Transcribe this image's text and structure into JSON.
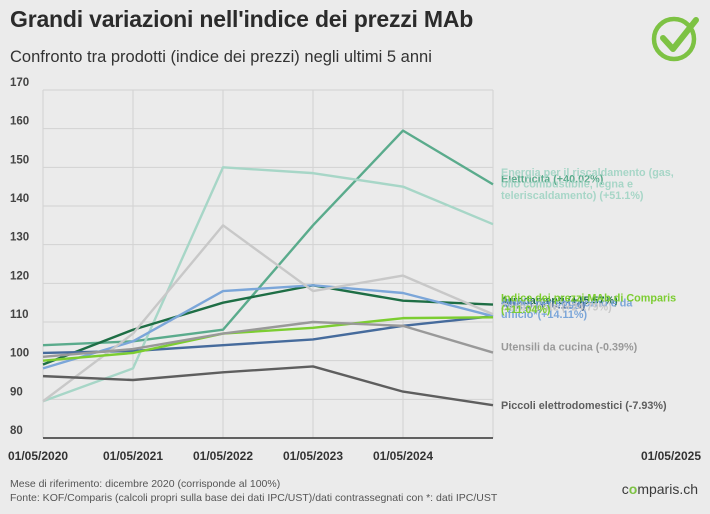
{
  "chart_data": {
    "type": "line",
    "title": "Grandi variazioni nell'indice dei prezzi MAb",
    "subtitle": "Confronto tra prodotti (indice dei prezzi) negli ultimi 5 anni",
    "x": [
      "01/05/2020",
      "01/05/2021",
      "01/05/2022",
      "01/05/2023",
      "01/05/2024",
      "01/05/2025"
    ],
    "ylim": [
      80,
      170
    ],
    "yticks": [
      80,
      90,
      100,
      110,
      120,
      130,
      140,
      150,
      160,
      170
    ],
    "grid": true,
    "series": [
      {
        "name": "Elettricità",
        "label": "Elettricità (+40.02%)",
        "color": "#5aab8c",
        "values": [
          104,
          105,
          108,
          135,
          159.5,
          145.6
        ]
      },
      {
        "name": "Energia per il riscaldamento",
        "label": "Energia per il riscaldamento (gas, olio combustibile, legna e teleriscaldamento) (+51.1%)",
        "color": "#a7d6c7",
        "values": [
          89.5,
          98,
          150,
          148.5,
          145,
          135.3
        ]
      },
      {
        "name": "Arredamenti",
        "label": "Arredamenti (+15.57%)",
        "color": "#1e6e45",
        "values": [
          99,
          108,
          115,
          119.5,
          115.5,
          114.5
        ]
      },
      {
        "name": "Affitto",
        "label": "Affitto (+10.11%)",
        "color": "#466b9c",
        "values": [
          102,
          102.5,
          104,
          105.5,
          109,
          111.5
        ]
      },
      {
        "name": "Mobili per soggiorno e da ufficio",
        "label": "Mobili per soggiorno e da ufficio*(+14.11%)",
        "color": "#7ba6d9",
        "values": [
          98,
          105,
          118,
          119.5,
          117.5,
          111.5
        ]
      },
      {
        "name": "Carburante",
        "label": "Carburante (+24.79%)",
        "color": "#c8c8c8",
        "values": [
          89.5,
          107,
          135,
          118,
          122,
          112
        ]
      },
      {
        "name": "Indice dei prezzi MAb di Comparis",
        "label": "Indice dei prezzi MAb di Comparis (+11.04%)",
        "color": "#7ccd31",
        "values": [
          100,
          102,
          107,
          108.5,
          111,
          111.2
        ]
      },
      {
        "name": "Utensili da cucina",
        "label": "Utensili da cucina (-0.39%)",
        "color": "#999999",
        "values": [
          101,
          103,
          107,
          110,
          109,
          102.1
        ]
      },
      {
        "name": "Piccoli elettrodomestici",
        "label": "Piccoli elettrodomestici (-7.93%)",
        "color": "#5e5e5e",
        "values": [
          96,
          95,
          97,
          98.5,
          92,
          88.5
        ]
      }
    ]
  },
  "footnotes": {
    "line1": "Mese di riferimento: dicembre 2020 (corrisponde al 100%)",
    "line2": "Fonte: KOF/Comparis (calcoli propri sulla base dei dati IPC/UST)/dati contrassegnati con *: dati IPC/UST"
  },
  "brand": {
    "part1": "c",
    "part2": "o",
    "part3": "mparis.ch"
  },
  "colors": {
    "background": "#ebebeb",
    "grid": "#d2d2d2",
    "axis": "#333333",
    "logo": "#7dc243"
  }
}
